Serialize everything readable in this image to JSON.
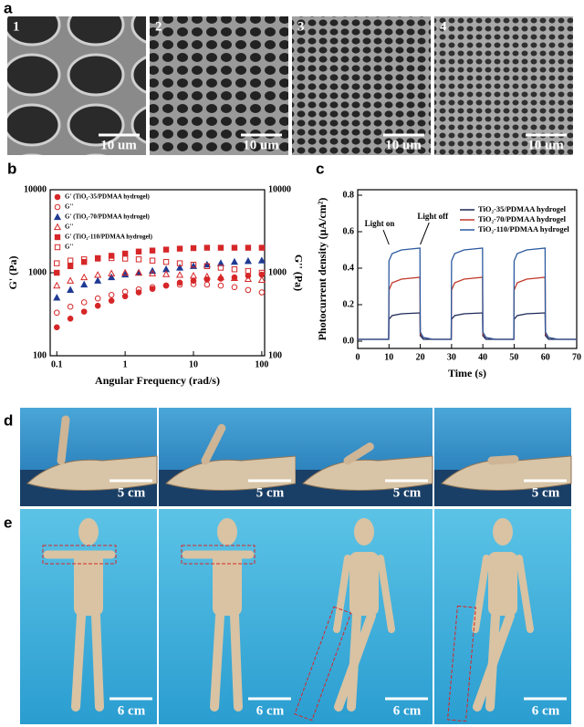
{
  "panel_labels": [
    "a",
    "b",
    "c",
    "d",
    "e"
  ],
  "sem_images": {
    "numbers": [
      "1",
      "2",
      "3",
      "4"
    ],
    "scale_bars": [
      "10 um",
      "10 um",
      "10 um",
      "10 um"
    ]
  },
  "hand_photos": {
    "scale_bars": [
      "5 cm",
      "5 cm",
      "5 cm",
      "5 cm"
    ]
  },
  "mannequin_photos": {
    "scale_bars": [
      "6 cm",
      "6 cm",
      "6 cm",
      "6 cm"
    ]
  },
  "chart_data": [
    {
      "type": "scatter",
      "xscale": "log",
      "yscale": "log",
      "xlabel": "Angular Frequency (rad/s)",
      "ylabel": "G' (Pa)",
      "y2label": "G'' (Pa)",
      "xlim": [
        0.08,
        110
      ],
      "xticks": [
        0.1,
        1,
        10,
        100
      ],
      "ylim": [
        100,
        10000
      ],
      "yticks": [
        100,
        1000,
        10000
      ],
      "y2lim": [
        100,
        10000
      ],
      "y2ticks": [
        100,
        1000,
        10000
      ],
      "legend": "upper left",
      "x": [
        0.1,
        0.158,
        0.251,
        0.398,
        0.631,
        1,
        1.58,
        2.51,
        3.98,
        6.31,
        10,
        15.8,
        25.1,
        39.8,
        63.1,
        100
      ],
      "series": [
        {
          "name": "G' (TiO₂-35/PDMAA hydrogel)",
          "color": "#d62728",
          "marker": "circle",
          "filled": true,
          "values": [
            220,
            280,
            340,
            400,
            460,
            520,
            580,
            640,
            700,
            760,
            800,
            830,
            850,
            880,
            920,
            950
          ]
        },
        {
          "name": "G''",
          "color": "#d62728",
          "marker": "circle",
          "filled": false,
          "values": [
            330,
            390,
            440,
            490,
            540,
            590,
            630,
            670,
            700,
            720,
            730,
            720,
            700,
            670,
            620,
            580
          ]
        },
        {
          "name": "G' (TiO₂-70/PDMAA hydrogel)",
          "color": "#1f3a93",
          "marker": "triangle",
          "filled": true,
          "values": [
            500,
            620,
            720,
            800,
            880,
            950,
            1000,
            1050,
            1100,
            1150,
            1200,
            1250,
            1300,
            1350,
            1380,
            1400
          ]
        },
        {
          "name": "G''",
          "color": "#d62728",
          "marker": "triangle",
          "filled": false,
          "values": [
            700,
            800,
            880,
            940,
            980,
            1000,
            1000,
            980,
            960,
            940,
            920,
            900,
            880,
            860,
            840,
            820
          ]
        },
        {
          "name": "G' (TiO₂-110/PDMAA hydrogel)",
          "color": "#d62728",
          "marker": "square",
          "filled": true,
          "values": [
            1000,
            1200,
            1350,
            1500,
            1600,
            1700,
            1800,
            1850,
            1900,
            1950,
            1980,
            2000,
            2000,
            2000,
            2000,
            2000
          ]
        },
        {
          "name": "G''",
          "color": "#d62728",
          "marker": "square",
          "filled": false,
          "values": [
            1300,
            1400,
            1450,
            1480,
            1500,
            1480,
            1450,
            1400,
            1350,
            1300,
            1250,
            1200,
            1150,
            1100,
            1050,
            1000
          ]
        }
      ]
    },
    {
      "type": "line",
      "xlabel": "Time (s)",
      "ylabel": "Photocurrent density (μA/cm²)",
      "xlim": [
        0,
        70
      ],
      "xticks": [
        0,
        10,
        20,
        30,
        40,
        50,
        60,
        70
      ],
      "ylim": [
        -0.04,
        0.83
      ],
      "yticks": [
        {
          "value": 0,
          "label": "0.0"
        },
        0.2,
        0.4,
        0.6,
        0.8
      ],
      "legend": "upper right",
      "annotations": [
        "Light on",
        "Light off"
      ],
      "x": [
        0,
        9.9,
        10,
        11,
        14,
        19.9,
        20,
        21,
        24,
        29.9,
        30,
        31,
        34,
        39.9,
        40,
        41,
        44,
        49.9,
        50,
        51,
        54,
        59.9,
        60,
        61,
        64,
        70
      ],
      "series": [
        {
          "name": "TiO₂-35/PDMAA hydrogel",
          "color": "#1c2757",
          "values": [
            0.01,
            0.01,
            0.12,
            0.14,
            0.15,
            0.155,
            0.03,
            0.01,
            0.01,
            0.01,
            0.12,
            0.14,
            0.15,
            0.155,
            0.03,
            0.01,
            0.01,
            0.01,
            0.12,
            0.14,
            0.15,
            0.155,
            0.03,
            0.01,
            0.01,
            0.01
          ]
        },
        {
          "name": "TiO₂-70/PDMAA hydrogel",
          "color": "#c0392b",
          "values": [
            0.01,
            0.01,
            0.28,
            0.32,
            0.34,
            0.35,
            0.04,
            0.02,
            0.01,
            0.01,
            0.28,
            0.32,
            0.34,
            0.35,
            0.04,
            0.02,
            0.01,
            0.01,
            0.28,
            0.32,
            0.34,
            0.35,
            0.04,
            0.02,
            0.01,
            0.01
          ]
        },
        {
          "name": "TiO₂-110/PDMAA hydrogel",
          "color": "#2c5aa0",
          "values": [
            0.01,
            0.01,
            0.44,
            0.48,
            0.5,
            0.51,
            0.05,
            0.02,
            0.01,
            0.01,
            0.44,
            0.48,
            0.5,
            0.51,
            0.05,
            0.02,
            0.01,
            0.01,
            0.44,
            0.48,
            0.5,
            0.51,
            0.05,
            0.02,
            0.01,
            0.01
          ]
        }
      ]
    }
  ]
}
